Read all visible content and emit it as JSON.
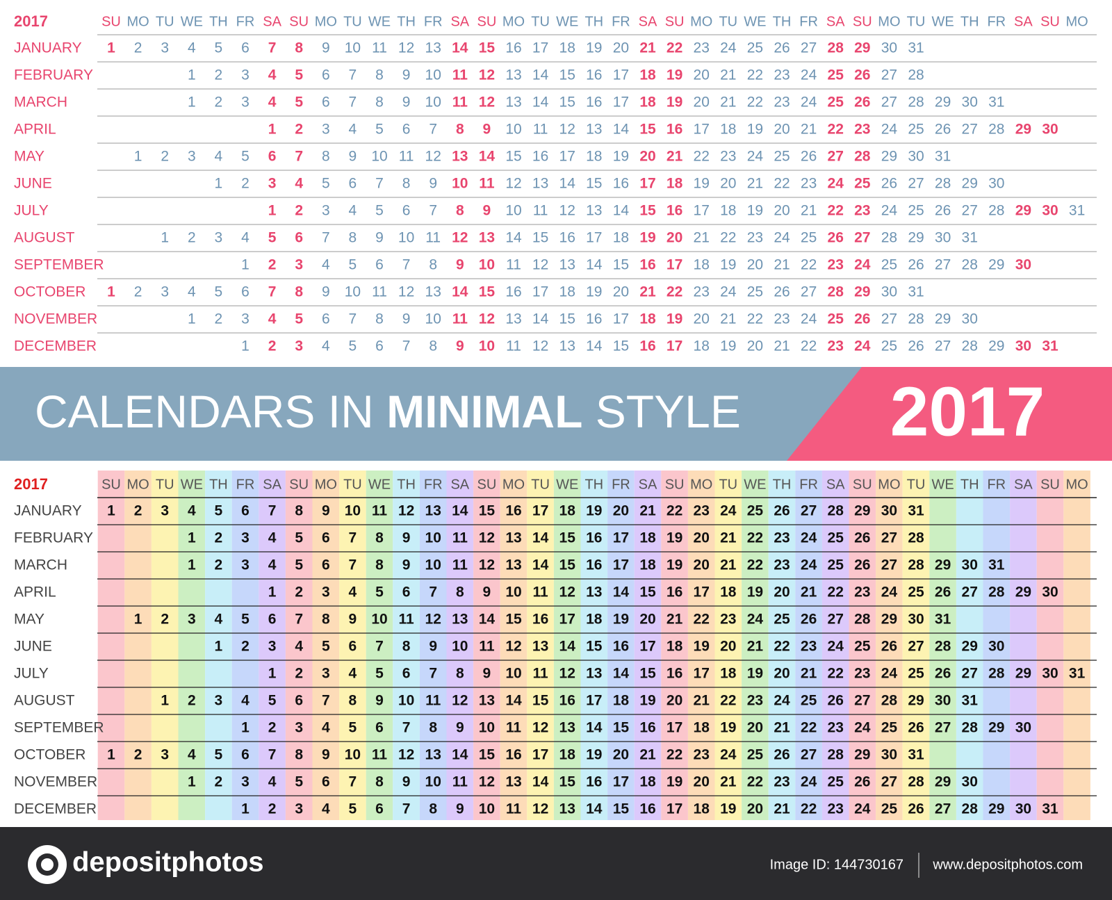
{
  "calendar": {
    "year": "2017",
    "weekdays": [
      "SU",
      "MO",
      "TU",
      "WE",
      "TH",
      "FR",
      "SA",
      "SU",
      "MO",
      "TU",
      "WE",
      "TH",
      "FR",
      "SA",
      "SU",
      "MO",
      "TU",
      "WE",
      "TH",
      "FR",
      "SA",
      "SU",
      "MO",
      "TU",
      "WE",
      "TH",
      "FR",
      "SA",
      "SU",
      "MO",
      "TU",
      "WE",
      "TH",
      "FR",
      "SA",
      "SU",
      "MO"
    ],
    "months": [
      {
        "name": "JANUARY",
        "days": [
          1,
          2,
          3,
          4,
          5,
          6,
          7,
          8,
          9,
          10,
          11,
          12,
          13,
          14,
          15,
          16,
          17,
          18,
          19,
          20,
          21,
          22,
          23,
          24,
          25,
          26,
          27,
          28,
          29,
          30,
          31
        ]
      },
      {
        "name": "FEBRUARY",
        "days": [
          null,
          null,
          null,
          1,
          2,
          3,
          4,
          5,
          6,
          7,
          8,
          9,
          10,
          11,
          12,
          13,
          14,
          15,
          16,
          17,
          18,
          19,
          20,
          21,
          22,
          23,
          24,
          25,
          26,
          27,
          28
        ]
      },
      {
        "name": "MARCH",
        "days": [
          null,
          null,
          null,
          1,
          2,
          3,
          4,
          5,
          6,
          7,
          8,
          9,
          10,
          11,
          12,
          13,
          14,
          15,
          16,
          17,
          18,
          19,
          20,
          21,
          22,
          23,
          24,
          25,
          26,
          27,
          28,
          29,
          30,
          31
        ]
      },
      {
        "name": "APRIL",
        "days": [
          null,
          null,
          null,
          null,
          null,
          null,
          1,
          2,
          3,
          4,
          5,
          6,
          7,
          8,
          9,
          10,
          11,
          12,
          13,
          14,
          15,
          16,
          17,
          18,
          19,
          20,
          21,
          22,
          23,
          24,
          25,
          26,
          27,
          28,
          29,
          30
        ]
      },
      {
        "name": "MAY",
        "days": [
          null,
          1,
          2,
          3,
          4,
          5,
          6,
          7,
          8,
          9,
          10,
          11,
          12,
          13,
          14,
          15,
          16,
          17,
          18,
          19,
          20,
          21,
          22,
          23,
          24,
          25,
          26,
          27,
          28,
          29,
          30,
          31
        ]
      },
      {
        "name": "JUNE",
        "days": [
          null,
          null,
          null,
          null,
          1,
          2,
          3,
          4,
          5,
          6,
          7,
          8,
          9,
          10,
          11,
          12,
          13,
          14,
          15,
          16,
          17,
          18,
          19,
          20,
          21,
          22,
          23,
          24,
          25,
          26,
          27,
          28,
          29,
          30
        ]
      },
      {
        "name": "JULY",
        "days": [
          null,
          null,
          null,
          null,
          null,
          null,
          1,
          2,
          3,
          4,
          5,
          6,
          7,
          8,
          9,
          10,
          11,
          12,
          13,
          14,
          15,
          16,
          17,
          18,
          19,
          20,
          21,
          22,
          23,
          24,
          25,
          26,
          27,
          28,
          29,
          30,
          31
        ]
      },
      {
        "name": "AUGUST",
        "days": [
          null,
          null,
          1,
          2,
          3,
          4,
          5,
          6,
          7,
          8,
          9,
          10,
          11,
          12,
          13,
          14,
          15,
          16,
          17,
          18,
          19,
          20,
          21,
          22,
          23,
          24,
          25,
          26,
          27,
          28,
          29,
          30,
          31
        ]
      },
      {
        "name": "SEPTEMBER",
        "days": [
          null,
          null,
          null,
          null,
          null,
          1,
          2,
          3,
          4,
          5,
          6,
          7,
          8,
          9,
          10,
          11,
          12,
          13,
          14,
          15,
          16,
          17,
          18,
          19,
          20,
          21,
          22,
          23,
          24,
          25,
          26,
          27,
          28,
          29,
          30
        ]
      },
      {
        "name": "OCTOBER",
        "days": [
          1,
          2,
          3,
          4,
          5,
          6,
          7,
          8,
          9,
          10,
          11,
          12,
          13,
          14,
          15,
          16,
          17,
          18,
          19,
          20,
          21,
          22,
          23,
          24,
          25,
          26,
          27,
          28,
          29,
          30,
          31
        ]
      },
      {
        "name": "NOVEMBER",
        "days": [
          null,
          null,
          null,
          1,
          2,
          3,
          4,
          5,
          6,
          7,
          8,
          9,
          10,
          11,
          12,
          13,
          14,
          15,
          16,
          17,
          18,
          19,
          20,
          21,
          22,
          23,
          24,
          25,
          26,
          27,
          28,
          29,
          30
        ]
      },
      {
        "name": "DECEMBER",
        "days": [
          null,
          null,
          null,
          null,
          null,
          1,
          2,
          3,
          4,
          5,
          6,
          7,
          8,
          9,
          10,
          11,
          12,
          13,
          14,
          15,
          16,
          17,
          18,
          19,
          20,
          21,
          22,
          23,
          24,
          25,
          26,
          27,
          28,
          29,
          30,
          31
        ]
      }
    ]
  },
  "banner": {
    "title_light": "CALENDARS IN",
    "title_bold": "MINIMAL",
    "title_end": "STYLE",
    "year": "2017"
  },
  "footer": {
    "logo": "depositphotos",
    "image_id": "Image ID: 144730167",
    "url": "www.depositphotos.com"
  }
}
